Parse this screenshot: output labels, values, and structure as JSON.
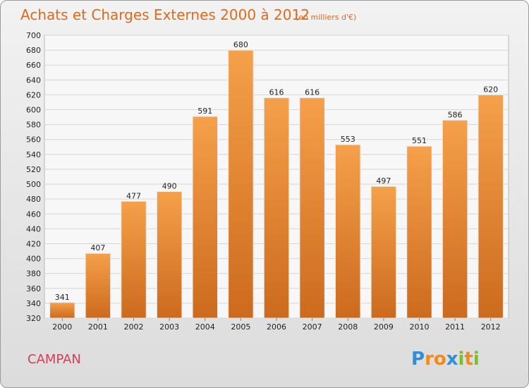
{
  "chart_data": {
    "type": "bar",
    "title": "Achats et Charges Externes 2000 à 2012",
    "subtitle": "(en milliers d'€)",
    "categories": [
      "2000",
      "2001",
      "2002",
      "2003",
      "2004",
      "2005",
      "2006",
      "2007",
      "2008",
      "2009",
      "2010",
      "2011",
      "2012"
    ],
    "values": [
      341,
      407,
      477,
      490,
      591,
      680,
      616,
      616,
      553,
      497,
      551,
      586,
      620
    ],
    "ylim": [
      320,
      700
    ],
    "ytick_step": 20,
    "grid": true,
    "legend": "none",
    "xlabel": "",
    "ylabel": "",
    "bar_color": "#f0913a",
    "bar_color_dark": "#c9661a"
  },
  "footer": {
    "place": "CAMPAN",
    "place_color": "#d0405a"
  },
  "logo": {
    "letters": [
      "P",
      "r",
      "o",
      "x",
      "i",
      "t",
      "i"
    ],
    "colors": [
      "#2f8fd8",
      "#f28a1c",
      "#f28a1c",
      "#2f8fd8",
      "#7cbf2a",
      "#f28a1c",
      "#7cbf2a"
    ]
  }
}
